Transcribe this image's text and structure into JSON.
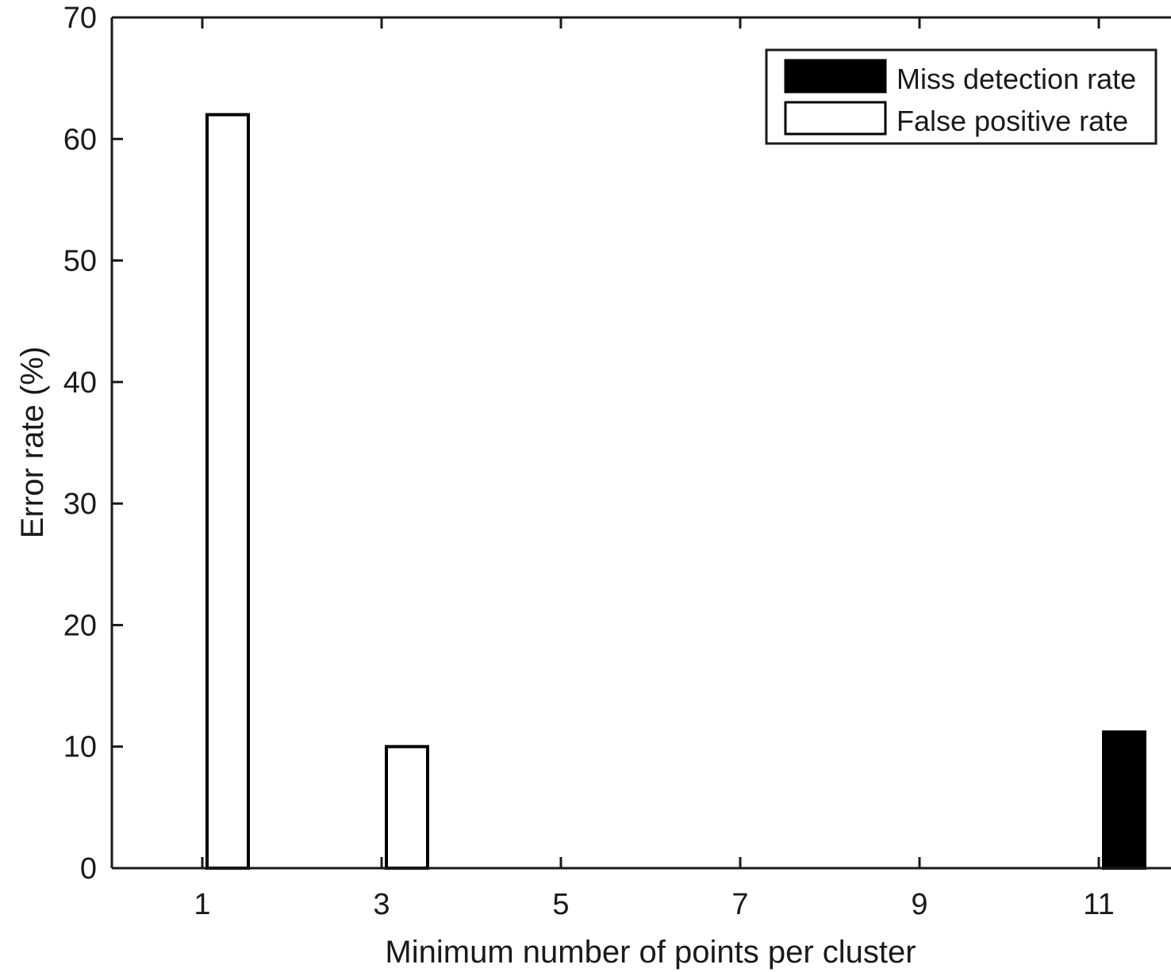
{
  "chart_data": {
    "type": "bar",
    "title": "",
    "xlabel": "Minimum number of points per cluster",
    "ylabel": "Error rate (%)",
    "x": [
      1,
      3,
      5,
      7,
      9,
      11
    ],
    "xticks": [
      "1",
      "3",
      "5",
      "7",
      "9",
      "11"
    ],
    "yticks": [
      "0",
      "10",
      "20",
      "30",
      "40",
      "50",
      "60",
      "70"
    ],
    "ylim": [
      0,
      70
    ],
    "grid": false,
    "legend_position": "top-right",
    "series": [
      {
        "name": "Miss detection rate",
        "color": "#000000",
        "fill": "#000000",
        "values": [
          0,
          0,
          0,
          0,
          0,
          11.2
        ]
      },
      {
        "name": "False positive rate",
        "color": "#000000",
        "fill": "#ffffff",
        "values": [
          62,
          10,
          0,
          0,
          0,
          0
        ]
      }
    ]
  }
}
